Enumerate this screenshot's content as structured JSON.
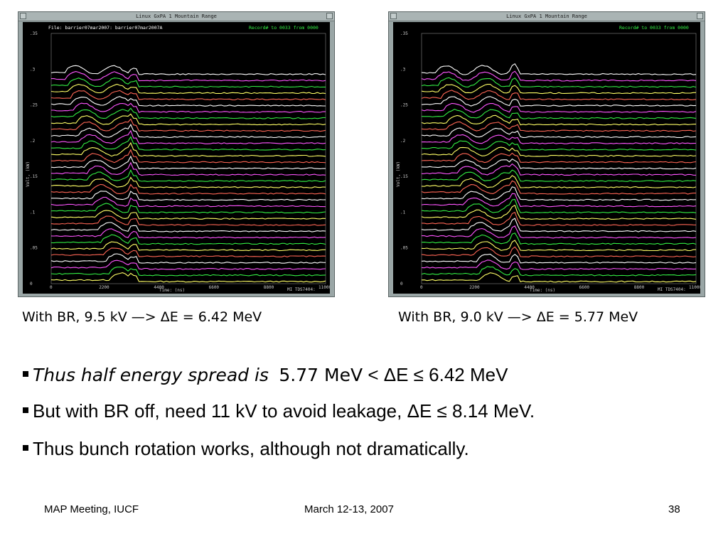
{
  "scopes": [
    {
      "id": "left",
      "window_title": "Linux GxPA 1  Mountain Range",
      "file_label": "File: barrier07mar2007:  barrier07mar2007A",
      "record_label": "Record# to 0033 from 0000",
      "y_ticks": [
        ".35",
        ".3",
        ".25",
        ".2",
        ".15",
        ".1",
        ".05",
        "0"
      ],
      "x_ticks": [
        "0",
        "2200",
        "4400",
        "6600",
        "8800",
        "11000"
      ],
      "x_label": "Time: (ns)",
      "y_label": "Volt, (kW)",
      "instrument": "MI TDS7404:",
      "edge_ns": 3300
    },
    {
      "id": "right",
      "window_title": "Linux GxPA 1  Mountain Range",
      "file_label": "",
      "record_label": "Record# to 0033 from 0000",
      "y_ticks": [
        ".35",
        ".3",
        ".25",
        ".2",
        ".15",
        ".1",
        ".05",
        "0"
      ],
      "x_ticks": [
        "0",
        "2200",
        "4400",
        "6600",
        "8800",
        "11000"
      ],
      "x_label": "Time: (ns)",
      "y_label": "Volt, (kW)",
      "instrument": "MI TDS7404:",
      "edge_ns": 3800
    }
  ],
  "captions": {
    "left": "With BR, 9.5 kV —>  ΔE = 6.42 MeV",
    "right": "With BR, 9.0 kV —>  ΔE = 5.77 MeV"
  },
  "bullets": {
    "b1_part1": "Thus half energy spread is",
    "b1_part2": "5.77 MeV",
    "b1_part3": "< ΔE ≤ 6.42 MeV",
    "b2": "But with BR off, need 11 kV to avoid leakage, ΔE ≤ 8.14 MeV.",
    "b3": "Thus bunch rotation works, although not dramatically."
  },
  "footer": {
    "left": "MAP Meeting, IUCF",
    "center": "March 12-13, 2007",
    "page": "38"
  },
  "trace_colors": [
    "#ffff66",
    "#33ee44",
    "#ff55ff",
    "#ffffff",
    "#ff6655"
  ]
}
